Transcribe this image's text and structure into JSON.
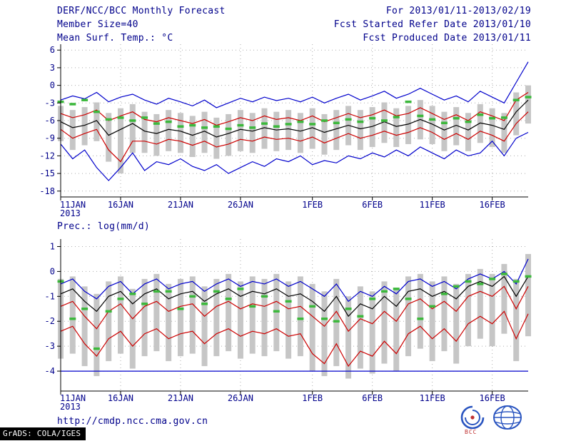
{
  "header": {
    "title": "DERF/NCC/BCC Monthly Forecast",
    "member_size": "Member Size=40",
    "for_range": "For 2013/01/11-2013/02/19",
    "fcst_started": "Fcst Started Refer Date 2013/01/10",
    "fcst_produced": "Fcst Produced Date 2013/01/11"
  },
  "footer": {
    "url": "http://cmdp.ncc.cma.gov.cn",
    "grads": "GrADS: COLA/IGES",
    "bcc_label": "BCC",
    "logos": [
      "bcc-logo",
      "cmc-logo"
    ]
  },
  "colors": {
    "text": "#00008b",
    "blue_line": "#0000cc",
    "red_line": "#cc0000",
    "black_line": "#000000",
    "green_marker": "#3cb83c",
    "bar_fill": "#c6c6c6",
    "grid": "#adadad",
    "axis": "#000000"
  },
  "chart_data": [
    {
      "type": "line",
      "title": "Mean Surf. Temp.: °C",
      "xlabel": "",
      "ylabel": "°C",
      "grid": true,
      "legend": "none",
      "n_points": 40,
      "ylim": [
        -19,
        7
      ],
      "yticks": [
        6,
        3,
        0,
        -3,
        -6,
        -9,
        -12,
        -15,
        -18
      ],
      "x_ticks": [
        {
          "i": 0,
          "label": "11JAN",
          "sublabel": "2013"
        },
        {
          "i": 5,
          "label": "16JAN"
        },
        {
          "i": 10,
          "label": "21JAN"
        },
        {
          "i": 15,
          "label": "26JAN"
        },
        {
          "i": 21,
          "label": "1FEB"
        },
        {
          "i": 26,
          "label": "6FEB"
        },
        {
          "i": 31,
          "label": "11FEB"
        },
        {
          "i": 36,
          "label": "16FEB"
        }
      ],
      "bars": {
        "name": "ensemble-spread",
        "high": [
          -3.5,
          -4.2,
          -3.7,
          -2.9,
          -4.7,
          -3.9,
          -3.2,
          -4.5,
          -4.9,
          -4.2,
          -4.7,
          -5.2,
          -4.5,
          -5.5,
          -4.9,
          -4.2,
          -4.7,
          -3.9,
          -4.5,
          -4.2,
          -4.7,
          -3.9,
          -4.9,
          -4.2,
          -3.5,
          -4.2,
          -3.7,
          -2.9,
          -3.9,
          -3.5,
          -2.5,
          -3.5,
          -4.5,
          -3.7,
          -4.7,
          -3.2,
          -3.9,
          -4.7,
          -1.2,
          0.0
        ],
        "low": [
          -9.5,
          -11.0,
          -10.2,
          -9.5,
          -13.0,
          -15.0,
          -11.5,
          -11.5,
          -12.0,
          -11.2,
          -11.5,
          -12.2,
          -11.5,
          -12.5,
          -12.0,
          -11.2,
          -11.5,
          -10.8,
          -11.2,
          -11.0,
          -11.5,
          -10.8,
          -11.8,
          -11.0,
          -10.2,
          -11.0,
          -10.5,
          -9.8,
          -10.5,
          -10.0,
          -9.2,
          -10.0,
          -11.2,
          -10.2,
          -11.2,
          -9.8,
          -10.5,
          -11.5,
          -8.5,
          -6.5
        ]
      },
      "series": [
        {
          "name": "ensemble-max",
          "color": "#0000cc",
          "values": [
            -2.5,
            -1.8,
            -2.3,
            -1.2,
            -2.8,
            -2.0,
            -1.5,
            -2.5,
            -3.2,
            -2.2,
            -2.8,
            -3.5,
            -2.5,
            -3.8,
            -3.0,
            -2.2,
            -2.8,
            -2.0,
            -2.6,
            -2.2,
            -2.8,
            -2.0,
            -3.0,
            -2.2,
            -1.5,
            -2.5,
            -1.8,
            -1.0,
            -2.2,
            -1.5,
            -0.5,
            -1.5,
            -2.5,
            -1.8,
            -2.8,
            -1.0,
            -2.0,
            -3.0,
            0.5,
            4.0
          ]
        },
        {
          "name": "upper-quartile",
          "color": "#cc0000",
          "values": [
            -4.8,
            -5.5,
            -5.0,
            -4.2,
            -6.0,
            -5.2,
            -4.5,
            -5.8,
            -6.2,
            -5.5,
            -6.0,
            -6.5,
            -5.8,
            -6.8,
            -6.2,
            -5.5,
            -6.0,
            -5.2,
            -5.8,
            -5.5,
            -6.0,
            -5.2,
            -6.2,
            -5.5,
            -4.8,
            -5.5,
            -5.0,
            -4.2,
            -5.2,
            -4.8,
            -3.8,
            -4.8,
            -5.8,
            -5.0,
            -6.0,
            -4.5,
            -5.2,
            -6.0,
            -2.5,
            -1.2
          ]
        },
        {
          "name": "ensemble-mean",
          "color": "#000000",
          "values": [
            -6.2,
            -7.2,
            -6.8,
            -6.0,
            -8.5,
            -7.5,
            -6.5,
            -7.8,
            -8.2,
            -7.5,
            -7.8,
            -8.5,
            -7.8,
            -8.8,
            -8.2,
            -7.5,
            -7.8,
            -7.2,
            -7.6,
            -7.4,
            -7.8,
            -7.2,
            -8.0,
            -7.4,
            -6.8,
            -7.4,
            -7.0,
            -6.2,
            -7.0,
            -6.6,
            -5.8,
            -6.6,
            -7.6,
            -6.8,
            -7.6,
            -6.4,
            -6.8,
            -7.5,
            -4.5,
            -2.5
          ]
        },
        {
          "name": "lower-quartile",
          "color": "#cc0000",
          "values": [
            -7.5,
            -9.0,
            -8.2,
            -7.5,
            -11.0,
            -13.0,
            -9.5,
            -9.5,
            -10.0,
            -9.2,
            -9.5,
            -10.2,
            -9.5,
            -10.5,
            -10.0,
            -9.2,
            -9.5,
            -8.8,
            -9.2,
            -9.0,
            -9.5,
            -8.8,
            -9.8,
            -9.0,
            -8.2,
            -9.0,
            -8.5,
            -7.8,
            -8.5,
            -8.0,
            -7.2,
            -8.0,
            -9.2,
            -8.2,
            -9.2,
            -7.8,
            -8.5,
            -9.5,
            -6.5,
            -4.5
          ]
        },
        {
          "name": "ensemble-min",
          "color": "#0000cc",
          "values": [
            -10.0,
            -12.5,
            -11.0,
            -14.0,
            -16.2,
            -14.0,
            -11.5,
            -14.5,
            -13.0,
            -13.5,
            -12.5,
            -13.8,
            -14.5,
            -13.5,
            -15.0,
            -14.0,
            -13.0,
            -13.8,
            -12.5,
            -13.0,
            -12.0,
            -13.5,
            -12.8,
            -13.2,
            -12.0,
            -12.5,
            -11.5,
            -12.2,
            -11.0,
            -12.0,
            -10.5,
            -11.5,
            -12.5,
            -11.0,
            -12.0,
            -11.5,
            -9.5,
            -12.0,
            -9.0,
            -8.0
          ]
        }
      ],
      "markers": {
        "name": "observation",
        "values": [
          -2.8,
          -3.2,
          -2.5,
          -4.5,
          -5.8,
          -5.5,
          -6.0,
          -5.5,
          -6.5,
          -6.2,
          -7.0,
          -6.8,
          -7.2,
          -7.0,
          -7.4,
          -6.8,
          -7.2,
          -6.5,
          -7.0,
          -6.6,
          -6.2,
          -6.6,
          -6.0,
          -6.4,
          -5.8,
          -6.2,
          -5.6,
          -6.0,
          -5.4,
          -2.8,
          -5.2,
          -5.8,
          -6.4,
          -5.6,
          -6.2,
          -5.0,
          -5.6,
          -5.5,
          -2.5,
          -2.0
        ]
      }
    },
    {
      "type": "line",
      "title": "Prec.: log(mm/d)",
      "xlabel": "",
      "ylabel": "log(mm/d)",
      "grid": true,
      "legend": "none",
      "n_points": 40,
      "ylim": [
        -4.8,
        1.3
      ],
      "yticks": [
        1,
        0,
        -1,
        -2,
        -3,
        -4
      ],
      "x_ticks": [
        {
          "i": 0,
          "label": "11JAN",
          "sublabel": "2013"
        },
        {
          "i": 5,
          "label": "16JAN"
        },
        {
          "i": 10,
          "label": "21JAN"
        },
        {
          "i": 15,
          "label": "26JAN"
        },
        {
          "i": 21,
          "label": "1FEB"
        },
        {
          "i": 26,
          "label": "6FEB"
        },
        {
          "i": 31,
          "label": "11FEB"
        },
        {
          "i": 36,
          "label": "16FEB"
        }
      ],
      "bars": {
        "name": "ensemble-spread",
        "high": [
          -0.3,
          -0.2,
          -0.6,
          -0.9,
          -0.4,
          -0.2,
          -0.7,
          -0.3,
          -0.1,
          -0.5,
          -0.3,
          -0.2,
          -0.6,
          -0.3,
          -0.1,
          -0.4,
          -0.2,
          -0.3,
          -0.1,
          -0.4,
          -0.2,
          -0.5,
          -0.8,
          -0.3,
          -1.0,
          -0.6,
          -0.8,
          -0.4,
          -0.7,
          -0.2,
          -0.1,
          -0.4,
          -0.2,
          -0.5,
          -0.1,
          0.1,
          -0.1,
          0.3,
          -0.3,
          0.7
        ],
        "low": [
          -3.5,
          -3.3,
          -3.8,
          -4.2,
          -3.6,
          -3.3,
          -3.9,
          -3.4,
          -3.2,
          -3.6,
          -3.4,
          -3.3,
          -3.8,
          -3.4,
          -3.2,
          -3.5,
          -3.3,
          -3.4,
          -3.2,
          -3.5,
          -3.4,
          -4.0,
          -4.2,
          -3.8,
          -4.3,
          -3.9,
          -4.1,
          -3.7,
          -4.0,
          -3.4,
          -3.1,
          -3.6,
          -3.2,
          -3.7,
          -3.0,
          -2.7,
          -3.0,
          -2.5,
          -3.6,
          -2.6
        ]
      },
      "series": [
        {
          "name": "ensemble-max",
          "color": "#0000cc",
          "values": [
            -0.5,
            -0.3,
            -0.8,
            -1.1,
            -0.6,
            -0.4,
            -0.9,
            -0.5,
            -0.3,
            -0.7,
            -0.5,
            -0.4,
            -0.8,
            -0.5,
            -0.3,
            -0.6,
            -0.4,
            -0.5,
            -0.3,
            -0.6,
            -0.4,
            -0.7,
            -1.0,
            -0.5,
            -1.2,
            -0.8,
            -1.0,
            -0.6,
            -0.9,
            -0.4,
            -0.3,
            -0.6,
            -0.4,
            -0.7,
            -0.3,
            -0.1,
            -0.3,
            0.0,
            -0.5,
            0.5
          ]
        },
        {
          "name": "ensemble-mean",
          "color": "#000000",
          "values": [
            -0.9,
            -0.7,
            -1.2,
            -1.6,
            -1.0,
            -0.8,
            -1.3,
            -0.9,
            -0.7,
            -1.1,
            -0.9,
            -0.8,
            -1.2,
            -0.9,
            -0.7,
            -1.0,
            -0.8,
            -0.9,
            -0.7,
            -1.0,
            -0.9,
            -1.2,
            -1.6,
            -1.0,
            -1.8,
            -1.3,
            -1.5,
            -1.0,
            -1.4,
            -0.8,
            -0.7,
            -1.0,
            -0.8,
            -1.1,
            -0.6,
            -0.4,
            -0.6,
            -0.2,
            -1.0,
            -0.2
          ]
        },
        {
          "name": "upper-quartile",
          "color": "#cc0000",
          "values": [
            -1.4,
            -1.2,
            -1.8,
            -2.3,
            -1.6,
            -1.3,
            -1.9,
            -1.4,
            -1.2,
            -1.6,
            -1.4,
            -1.3,
            -1.8,
            -1.4,
            -1.2,
            -1.5,
            -1.3,
            -1.4,
            -1.2,
            -1.5,
            -1.4,
            -1.8,
            -2.2,
            -1.6,
            -2.4,
            -1.9,
            -2.1,
            -1.6,
            -2.0,
            -1.3,
            -1.1,
            -1.5,
            -1.2,
            -1.6,
            -1.0,
            -0.8,
            -1.0,
            -0.6,
            -1.5,
            -0.6
          ]
        },
        {
          "name": "lower-quartile",
          "color": "#cc0000",
          "values": [
            -2.4,
            -2.2,
            -2.9,
            -3.4,
            -2.7,
            -2.4,
            -3.0,
            -2.5,
            -2.3,
            -2.7,
            -2.5,
            -2.4,
            -2.9,
            -2.5,
            -2.3,
            -2.6,
            -2.4,
            -2.5,
            -2.3,
            -2.6,
            -2.5,
            -3.3,
            -3.7,
            -2.9,
            -3.8,
            -3.2,
            -3.4,
            -2.8,
            -3.3,
            -2.5,
            -2.2,
            -2.7,
            -2.3,
            -2.8,
            -2.1,
            -1.8,
            -2.1,
            -1.6,
            -2.7,
            -1.7
          ]
        },
        {
          "name": "zero-precip-floor",
          "color": "#0000cc",
          "constant": -4.0
        }
      ],
      "markers": {
        "name": "observation",
        "values": [
          -0.4,
          -1.9,
          -1.5,
          -3.1,
          -1.6,
          -1.1,
          -0.9,
          -1.3,
          -0.8,
          -0.8,
          -1.5,
          -1.0,
          -1.3,
          -0.8,
          -1.1,
          -0.7,
          -1.4,
          -1.0,
          -1.6,
          -1.2,
          -1.9,
          -1.4,
          -1.9,
          -2.0,
          -1.5,
          -1.8,
          -1.1,
          -0.8,
          -0.7,
          -1.1,
          -1.9,
          -1.4,
          -0.9,
          -0.6,
          -0.4,
          -0.5,
          -0.3,
          -0.1,
          -0.4,
          -0.2
        ]
      }
    }
  ]
}
